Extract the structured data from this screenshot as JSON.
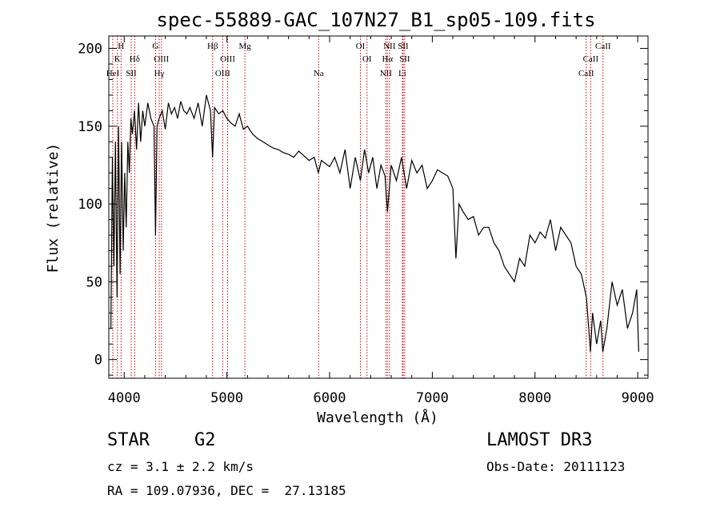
{
  "chart_data": {
    "type": "line",
    "title": "spec-55889-GAC_107N27_B1_sp05-109.fits",
    "xlabel": "Wavelength (Å)",
    "ylabel": "Flux (relative)",
    "xlim": [
      3850,
      9100
    ],
    "ylim": [
      -12,
      208
    ],
    "xticks": [
      4000,
      5000,
      6000,
      7000,
      8000,
      9000
    ],
    "yticks": [
      0,
      50,
      100,
      150,
      200
    ],
    "series": [
      {
        "name": "flux",
        "x": [
          3870,
          3885,
          3900,
          3915,
          3930,
          3945,
          3960,
          3975,
          3990,
          4005,
          4020,
          4035,
          4050,
          4065,
          4080,
          4100,
          4120,
          4140,
          4160,
          4180,
          4200,
          4230,
          4260,
          4290,
          4305,
          4320,
          4340,
          4370,
          4400,
          4430,
          4460,
          4490,
          4520,
          4550,
          4580,
          4610,
          4640,
          4680,
          4720,
          4760,
          4800,
          4840,
          4860,
          4880,
          4920,
          4960,
          5000,
          5040,
          5080,
          5120,
          5160,
          5200,
          5250,
          5300,
          5350,
          5400,
          5450,
          5500,
          5550,
          5600,
          5650,
          5700,
          5750,
          5800,
          5850,
          5890,
          5920,
          5960,
          6000,
          6050,
          6100,
          6150,
          6200,
          6250,
          6300,
          6340,
          6380,
          6420,
          6460,
          6500,
          6540,
          6563,
          6600,
          6650,
          6700,
          6750,
          6800,
          6850,
          6900,
          6950,
          7000,
          7050,
          7100,
          7150,
          7200,
          7230,
          7260,
          7300,
          7350,
          7400,
          7450,
          7500,
          7550,
          7600,
          7650,
          7700,
          7750,
          7800,
          7850,
          7900,
          7950,
          8000,
          8050,
          8100,
          8150,
          8200,
          8250,
          8300,
          8350,
          8400,
          8450,
          8500,
          8540,
          8560,
          8600,
          8640,
          8660,
          8700,
          8750,
          8800,
          8850,
          8900,
          8950,
          8990,
          9010
        ],
        "values": [
          20,
          130,
          60,
          140,
          40,
          150,
          55,
          140,
          70,
          120,
          85,
          140,
          120,
          155,
          145,
          160,
          135,
          165,
          140,
          160,
          150,
          165,
          155,
          150,
          80,
          150,
          155,
          160,
          148,
          165,
          158,
          162,
          155,
          166,
          160,
          158,
          162,
          155,
          165,
          150,
          170,
          160,
          130,
          162,
          158,
          160,
          155,
          152,
          150,
          158,
          148,
          150,
          145,
          142,
          140,
          138,
          136,
          135,
          133,
          132,
          130,
          134,
          131,
          128,
          130,
          120,
          128,
          126,
          124,
          130,
          120,
          135,
          110,
          130,
          115,
          135,
          120,
          130,
          110,
          125,
          118,
          95,
          125,
          115,
          130,
          110,
          128,
          120,
          125,
          110,
          115,
          122,
          120,
          118,
          110,
          65,
          100,
          95,
          90,
          92,
          80,
          85,
          85,
          75,
          70,
          60,
          55,
          50,
          65,
          60,
          80,
          75,
          82,
          78,
          90,
          70,
          85,
          80,
          75,
          60,
          55,
          40,
          5,
          30,
          10,
          25,
          5,
          20,
          50,
          35,
          45,
          20,
          30,
          45,
          5
        ]
      }
    ],
    "lines": [
      {
        "label": "HeI",
        "x": 3889,
        "row": 3
      },
      {
        "label": "K",
        "x": 3934,
        "row": 2
      },
      {
        "label": "H",
        "x": 3970,
        "row": 1
      },
      {
        "label": "SII",
        "x": 4069,
        "row": 3
      },
      {
        "label": "Hδ",
        "x": 4102,
        "row": 2
      },
      {
        "label": "G",
        "x": 4305,
        "row": 1
      },
      {
        "label": "OIII",
        "x": 4363,
        "row": 2
      },
      {
        "label": "Hγ",
        "x": 4341,
        "row": 3
      },
      {
        "label": "Hβ",
        "x": 4861,
        "row": 1
      },
      {
        "label": "OIII",
        "x": 4959,
        "row": 3
      },
      {
        "label": "OIII",
        "x": 5007,
        "row": 2
      },
      {
        "label": "Mg",
        "x": 5175,
        "row": 1
      },
      {
        "label": "Na",
        "x": 5893,
        "row": 3
      },
      {
        "label": "OI",
        "x": 6300,
        "row": 1
      },
      {
        "label": "OI",
        "x": 6364,
        "row": 2
      },
      {
        "label": "NII",
        "x": 6548,
        "row": 3
      },
      {
        "label": "NII",
        "x": 6583,
        "row": 1
      },
      {
        "label": "Hα",
        "x": 6563,
        "row": 2
      },
      {
        "label": "SII",
        "x": 6716,
        "row": 1
      },
      {
        "label": "SII",
        "x": 6731,
        "row": 2
      },
      {
        "label": "Li",
        "x": 6708,
        "row": 3
      },
      {
        "label": "CaII",
        "x": 8498,
        "row": 3
      },
      {
        "label": "CaII",
        "x": 8542,
        "row": 2
      },
      {
        "label": "CaII",
        "x": 8662,
        "row": 1
      }
    ]
  },
  "info": {
    "class": "STAR",
    "subclass": "G2",
    "cz": "cz = 3.1 ± 2.2 km/s",
    "radec": "RA = 109.07936, DEC =  27.13185",
    "survey": "LAMOST DR3",
    "obsdate": "Obs-Date: 20111123"
  },
  "colors": {
    "line_marker": "#cc0000",
    "spectrum": "#000000"
  }
}
